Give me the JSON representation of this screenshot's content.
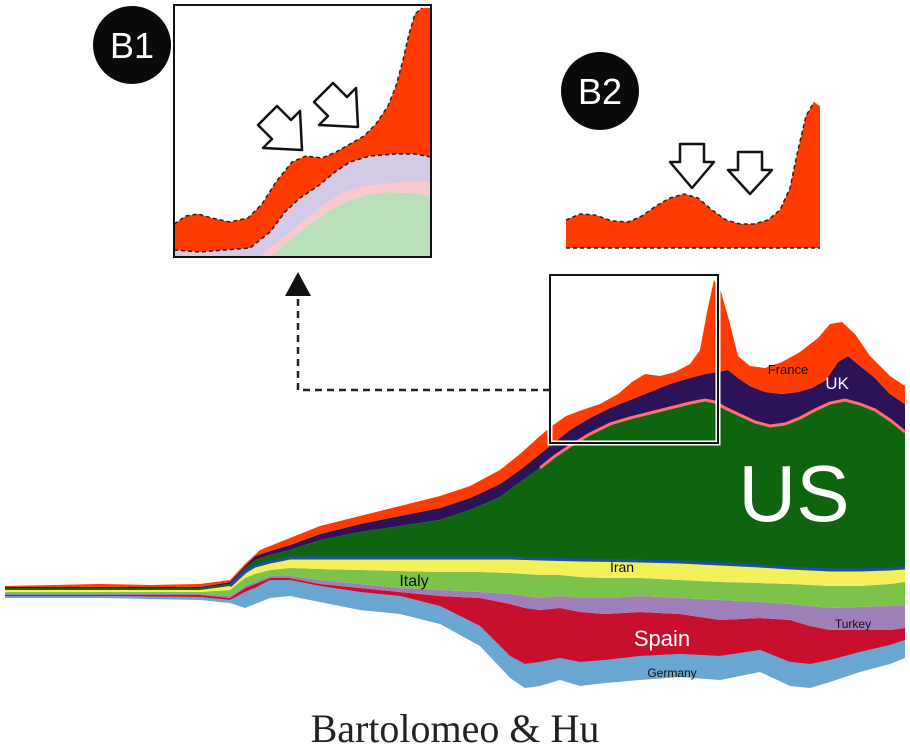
{
  "chart_data": {
    "type": "area",
    "variant": "streamgraph",
    "stacking_order_bottom_to_top": [
      "Germany",
      "Spain",
      "Turkey",
      "Italy",
      "Iran",
      "US",
      "UK",
      "France"
    ],
    "series": [
      {
        "name": "Germany",
        "color": "#6aa6d2",
        "label_color": "#111111"
      },
      {
        "name": "Spain",
        "color": "#c8102e",
        "label_color": "#ffffff"
      },
      {
        "name": "Turkey",
        "color": "#9e7fb8",
        "label_color": "#111111"
      },
      {
        "name": "Italy",
        "color": "#7dc24a",
        "label_color": "#111111"
      },
      {
        "name": "Iran",
        "color": "#f3f05a",
        "label_color": "#111111"
      },
      {
        "name": "US",
        "color": "#0f6410",
        "label_color": "#ffffff"
      },
      {
        "name": "UK",
        "color": "#2c1357",
        "label_color": "#ffffff"
      },
      {
        "name": "France",
        "color": "#ff3b00",
        "label_color": "#111111"
      }
    ],
    "insets": [
      {
        "badge": "B1",
        "shows": "enlarged detail of the boxed region of the main streamgraph, with two arrows marking dips in the upper band"
      },
      {
        "badge": "B2",
        "shows": "France band shown alone, with two arrows marking its dips"
      }
    ],
    "colors": {
      "background": "#ffffff",
      "badge": "#0a0a0a",
      "inset_frame": "#111111",
      "separator_line": "#ff6f6f",
      "iran_separator": "#1e4ea8",
      "faded_purple": "#d5cae6",
      "faded_pink": "#f9c9cf",
      "faded_green": "#b9e0b9"
    },
    "caption": "Bartolomeo & Hu"
  }
}
